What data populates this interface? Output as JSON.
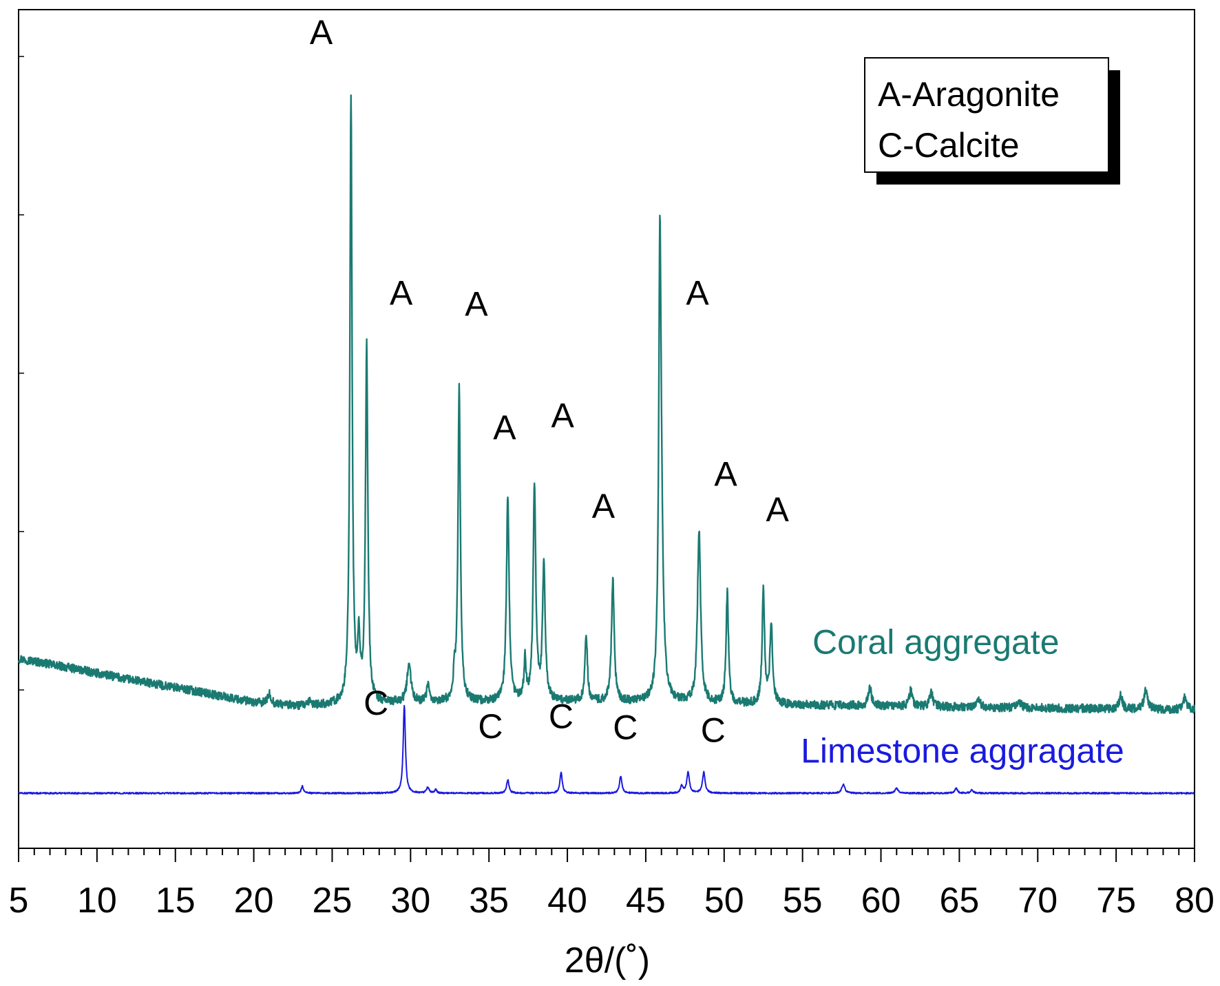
{
  "chart_data": {
    "type": "line",
    "title": "",
    "xlabel": "2θ/(˚)",
    "ylabel": "",
    "xlim": [
      5,
      80
    ],
    "ylim": [
      -45,
      640
    ],
    "x_ticks": [
      "5",
      "10",
      "15",
      "20",
      "25",
      "30",
      "35",
      "40",
      "45",
      "50",
      "55",
      "60",
      "65",
      "70",
      "75",
      "80"
    ],
    "legend": {
      "position": "top-right",
      "entries": [
        "A-Aragonite",
        "C-Calcite"
      ]
    },
    "series": [
      {
        "name": "Coral aggregate",
        "color": "#1a7a72",
        "label_position": {
          "x": 63.5,
          "y": 114
        },
        "baseline": {
          "x": [
            5,
            8,
            12,
            16,
            20,
            23,
            25.7,
            30,
            40,
            55,
            80
          ],
          "y": [
            110,
            103,
            93,
            84,
            74,
            71,
            72,
            74,
            75,
            72,
            68
          ]
        },
        "peaks": [
          {
            "x": 21.0,
            "h": 8,
            "w": 0.12
          },
          {
            "x": 23.6,
            "h": 4,
            "w": 0.1
          },
          {
            "x": 26.2,
            "h": 494,
            "w": 0.085
          },
          {
            "x": 26.7,
            "h": 48,
            "w": 0.08
          },
          {
            "x": 27.2,
            "h": 290,
            "w": 0.09
          },
          {
            "x": 29.9,
            "h": 30,
            "w": 0.15
          },
          {
            "x": 31.1,
            "h": 15,
            "w": 0.08
          },
          {
            "x": 32.8,
            "h": 20,
            "w": 0.07
          },
          {
            "x": 33.1,
            "h": 258,
            "w": 0.09
          },
          {
            "x": 36.2,
            "h": 168,
            "w": 0.1
          },
          {
            "x": 37.3,
            "h": 35,
            "w": 0.07
          },
          {
            "x": 37.9,
            "h": 175,
            "w": 0.1
          },
          {
            "x": 38.5,
            "h": 110,
            "w": 0.1
          },
          {
            "x": 41.2,
            "h": 55,
            "w": 0.09
          },
          {
            "x": 42.9,
            "h": 100,
            "w": 0.1
          },
          {
            "x": 45.9,
            "h": 330,
            "w": 0.09
          },
          {
            "x": 46.0,
            "h": 100,
            "w": 0.14
          },
          {
            "x": 48.4,
            "h": 140,
            "w": 0.12
          },
          {
            "x": 50.2,
            "h": 90,
            "w": 0.09
          },
          {
            "x": 52.5,
            "h": 93,
            "w": 0.09
          },
          {
            "x": 53.0,
            "h": 65,
            "w": 0.1
          },
          {
            "x": 59.3,
            "h": 14,
            "w": 0.13
          },
          {
            "x": 61.9,
            "h": 13,
            "w": 0.12
          },
          {
            "x": 63.2,
            "h": 12,
            "w": 0.12
          },
          {
            "x": 66.2,
            "h": 8,
            "w": 0.12
          },
          {
            "x": 68.8,
            "h": 6,
            "w": 0.13
          },
          {
            "x": 75.3,
            "h": 11,
            "w": 0.12
          },
          {
            "x": 76.9,
            "h": 16,
            "w": 0.14
          },
          {
            "x": 79.4,
            "h": 11,
            "w": 0.12
          }
        ]
      },
      {
        "name": "Limestone aggragate",
        "color": "#1a1ae0",
        "label_position": {
          "x": 65.2,
          "y": 25
        },
        "baseline": {
          "x": [
            5,
            80
          ],
          "y": [
            0,
            0
          ]
        },
        "peaks": [
          {
            "x": 23.1,
            "h": 6,
            "w": 0.08
          },
          {
            "x": 29.6,
            "h": 72,
            "w": 0.085
          },
          {
            "x": 31.1,
            "h": 5,
            "w": 0.09
          },
          {
            "x": 31.6,
            "h": 3,
            "w": 0.08
          },
          {
            "x": 36.2,
            "h": 11,
            "w": 0.09
          },
          {
            "x": 39.6,
            "h": 17,
            "w": 0.09
          },
          {
            "x": 43.4,
            "h": 14,
            "w": 0.09
          },
          {
            "x": 47.3,
            "h": 6,
            "w": 0.09
          },
          {
            "x": 47.7,
            "h": 17,
            "w": 0.1
          },
          {
            "x": 48.7,
            "h": 17,
            "w": 0.1
          },
          {
            "x": 57.6,
            "h": 7,
            "w": 0.12
          },
          {
            "x": 61.0,
            "h": 4,
            "w": 0.12
          },
          {
            "x": 64.8,
            "h": 4,
            "w": 0.1
          },
          {
            "x": 65.8,
            "h": 3,
            "w": 0.1
          }
        ]
      }
    ],
    "annotations": [
      {
        "text": "A",
        "x": 24.3,
        "y": 612
      },
      {
        "text": "A",
        "x": 29.4,
        "y": 399
      },
      {
        "text": "A",
        "x": 34.2,
        "y": 390
      },
      {
        "text": "A",
        "x": 36.0,
        "y": 289
      },
      {
        "text": "A",
        "x": 39.7,
        "y": 299
      },
      {
        "text": "A",
        "x": 42.3,
        "y": 225
      },
      {
        "text": "A",
        "x": 48.3,
        "y": 399
      },
      {
        "text": "A",
        "x": 50.1,
        "y": 251
      },
      {
        "text": "A",
        "x": 53.4,
        "y": 222
      },
      {
        "text": "C",
        "x": 27.8,
        "y": 64
      },
      {
        "text": "C",
        "x": 35.1,
        "y": 45
      },
      {
        "text": "C",
        "x": 39.6,
        "y": 53
      },
      {
        "text": "C",
        "x": 43.7,
        "y": 44
      },
      {
        "text": "C",
        "x": 49.3,
        "y": 42
      }
    ]
  }
}
